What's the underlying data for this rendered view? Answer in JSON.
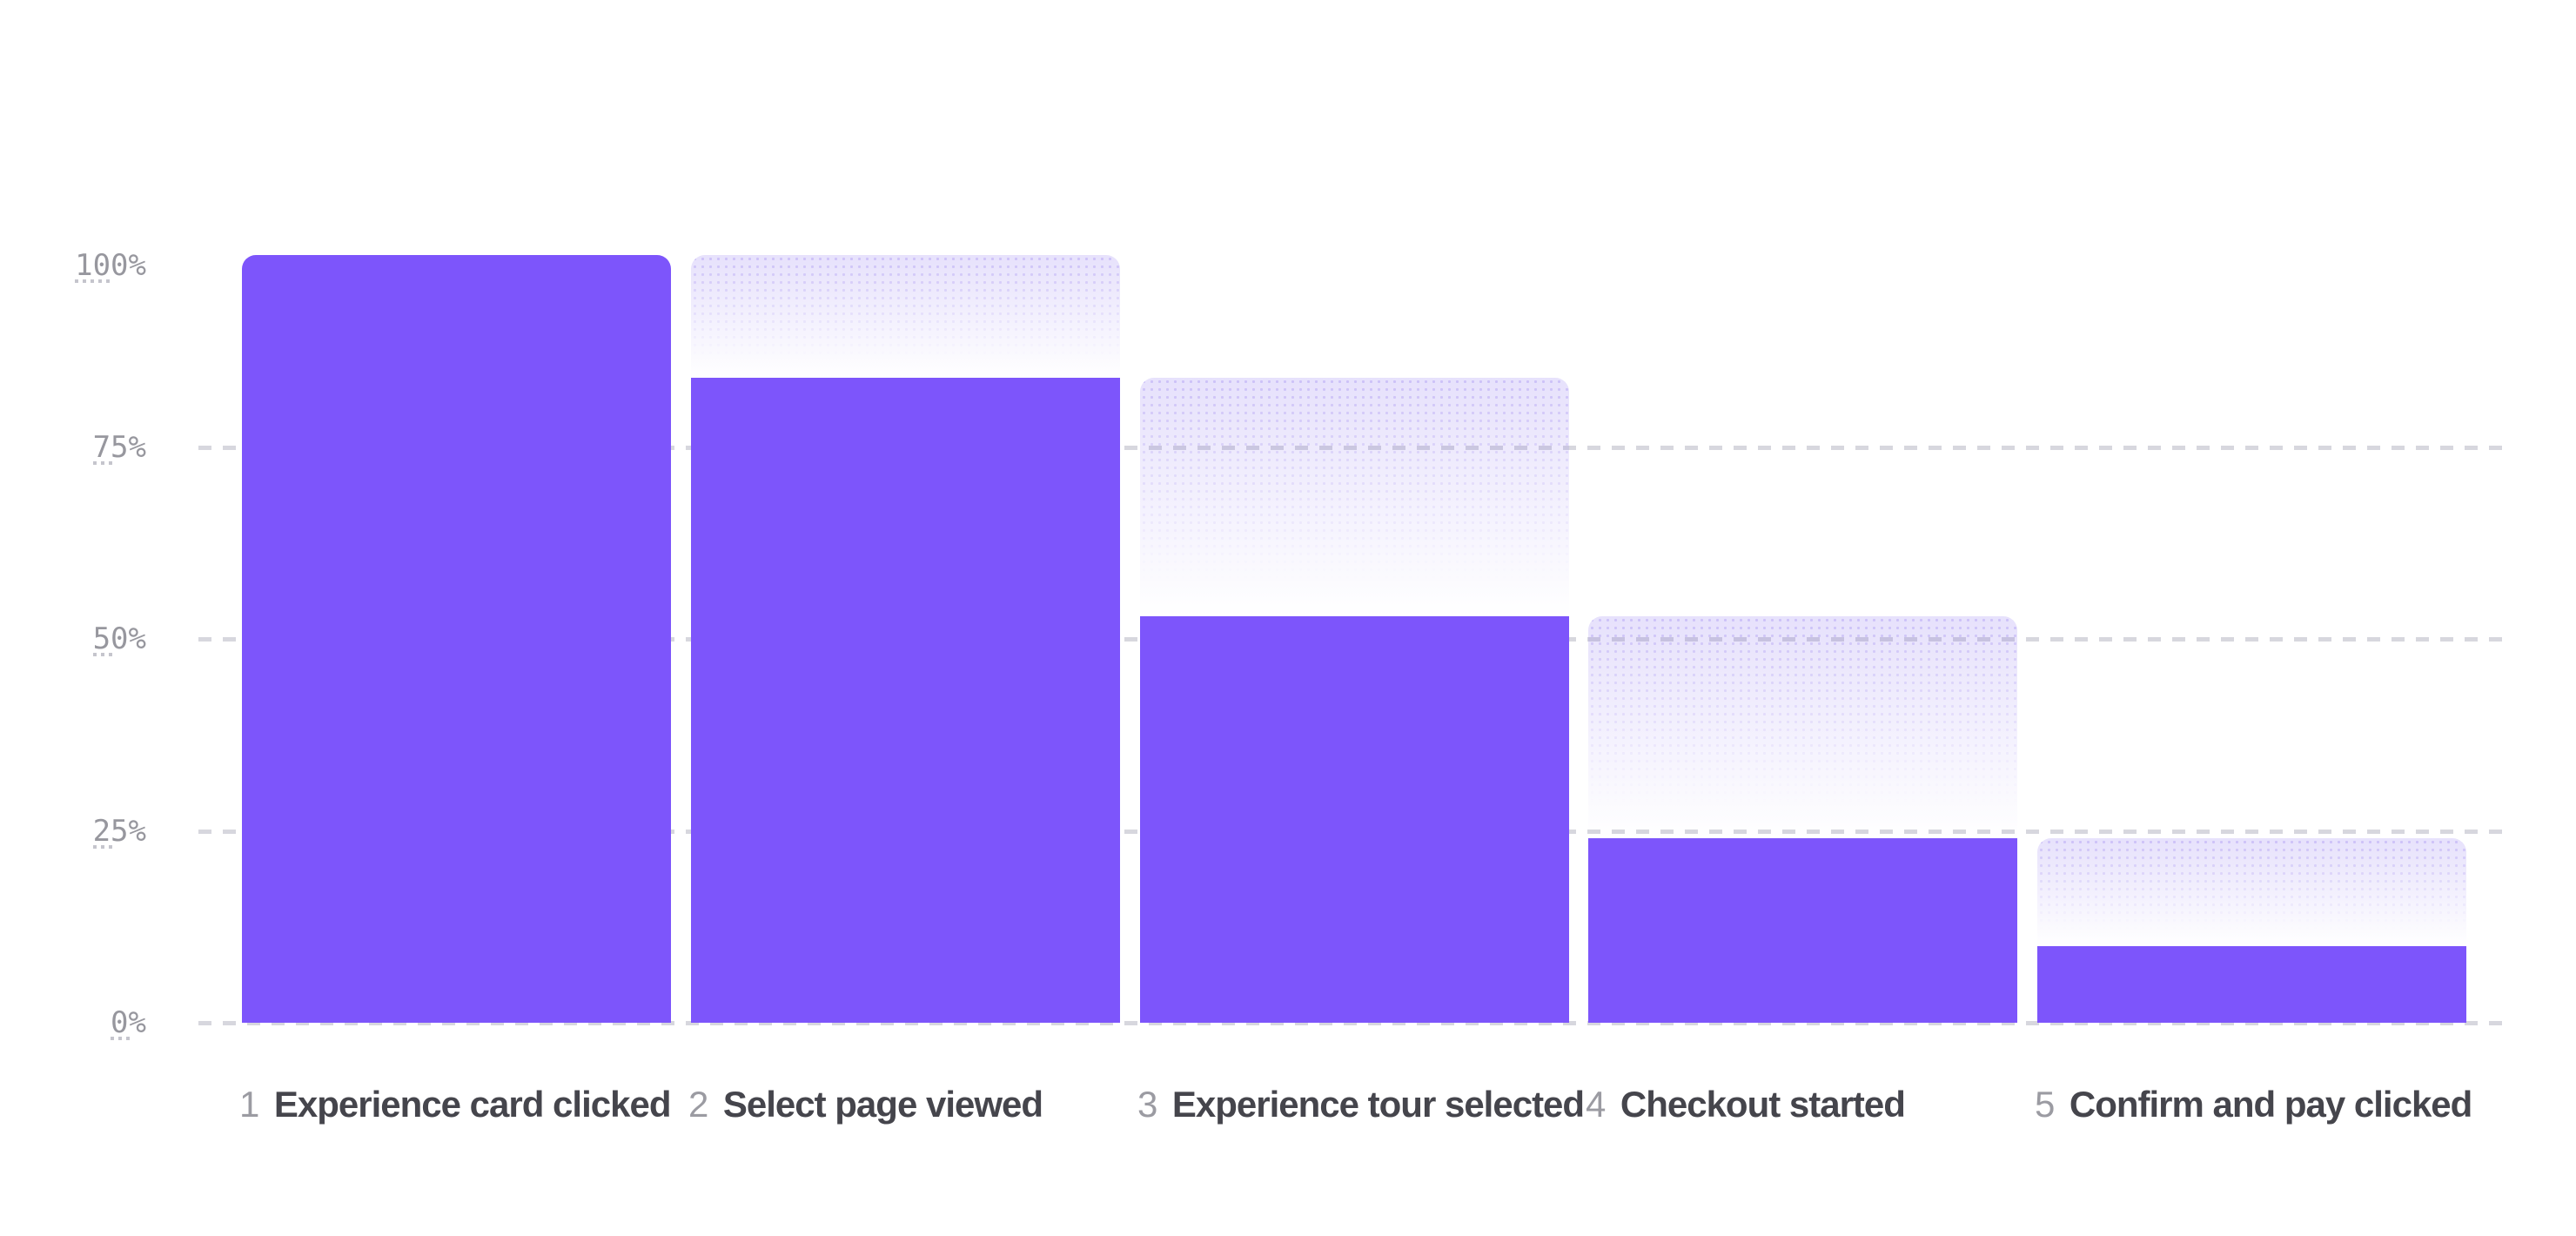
{
  "chart_data": {
    "type": "bar",
    "subtype": "funnel",
    "title": "",
    "xlabel": "",
    "ylabel": "",
    "ylim": [
      0,
      100
    ],
    "legend": "none",
    "grid": {
      "style": "dashed-horizontal",
      "lines_at_pct": [
        75,
        50,
        25,
        0
      ]
    },
    "y_ticks": [
      {
        "label": "100%",
        "pct": 100
      },
      {
        "label": "75%",
        "pct": 75
      },
      {
        "label": "50%",
        "pct": 50
      },
      {
        "label": "25%",
        "pct": 25
      },
      {
        "label": "0%",
        "pct": 0
      }
    ],
    "categories": [
      "Experience card clicked",
      "Select page viewed",
      "Experience tour selected",
      "Checkout started",
      "Confirm and pay clicked"
    ],
    "values": [
      100,
      84,
      53,
      24,
      10
    ],
    "steps": [
      {
        "number": "1",
        "label": "Experience card clicked",
        "value_pct": 100,
        "ghost_from_pct": 100
      },
      {
        "number": "2",
        "label": "Select page viewed",
        "value_pct": 84,
        "ghost_from_pct": 100
      },
      {
        "number": "3",
        "label": "Experience tour selected",
        "value_pct": 53,
        "ghost_from_pct": 84
      },
      {
        "number": "4",
        "label": "Checkout started",
        "value_pct": 24,
        "ghost_from_pct": 53
      },
      {
        "number": "5",
        "label": "Confirm and pay clicked",
        "value_pct": 10,
        "ghost_from_pct": 24
      }
    ],
    "colors": {
      "bar": "#7d55fb",
      "ghost_top": "rgba(110,78,235,0.17)",
      "gridline": "#d7d7de",
      "tick_text": "#97979e",
      "step_number": "#9b9ba2",
      "step_label": "#45454c",
      "background": "#ffffff"
    }
  }
}
